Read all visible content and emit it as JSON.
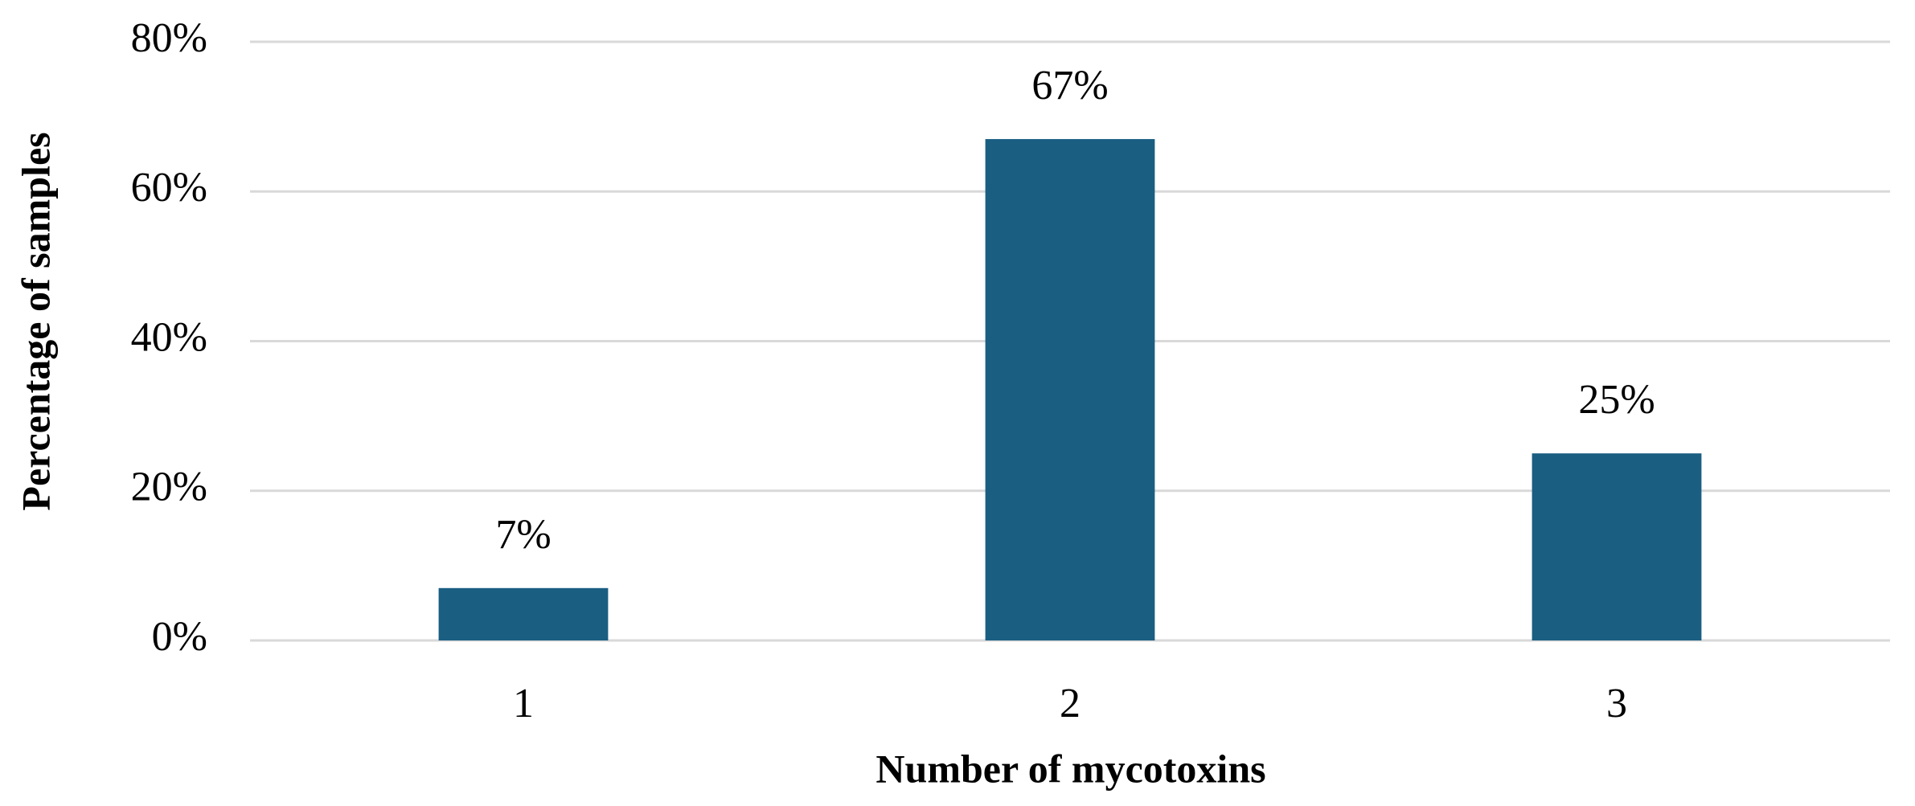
{
  "chart_data": {
    "type": "bar",
    "x_label": "Number of mycotoxins",
    "y_label": "Percentage of samples",
    "categories": [
      "1",
      "2",
      "3"
    ],
    "values": [
      7,
      67,
      25
    ],
    "value_labels": [
      "7%",
      "67%",
      "25%"
    ],
    "color": "#1a5e82",
    "ylim": [
      0,
      80
    ],
    "yticks": [
      {
        "value": 0,
        "label": "0%"
      },
      {
        "value": 20,
        "label": "20%"
      },
      {
        "value": 40,
        "label": "40%"
      },
      {
        "value": 60,
        "label": "60%"
      },
      {
        "value": 80,
        "label": "80%"
      }
    ],
    "grid": true
  }
}
